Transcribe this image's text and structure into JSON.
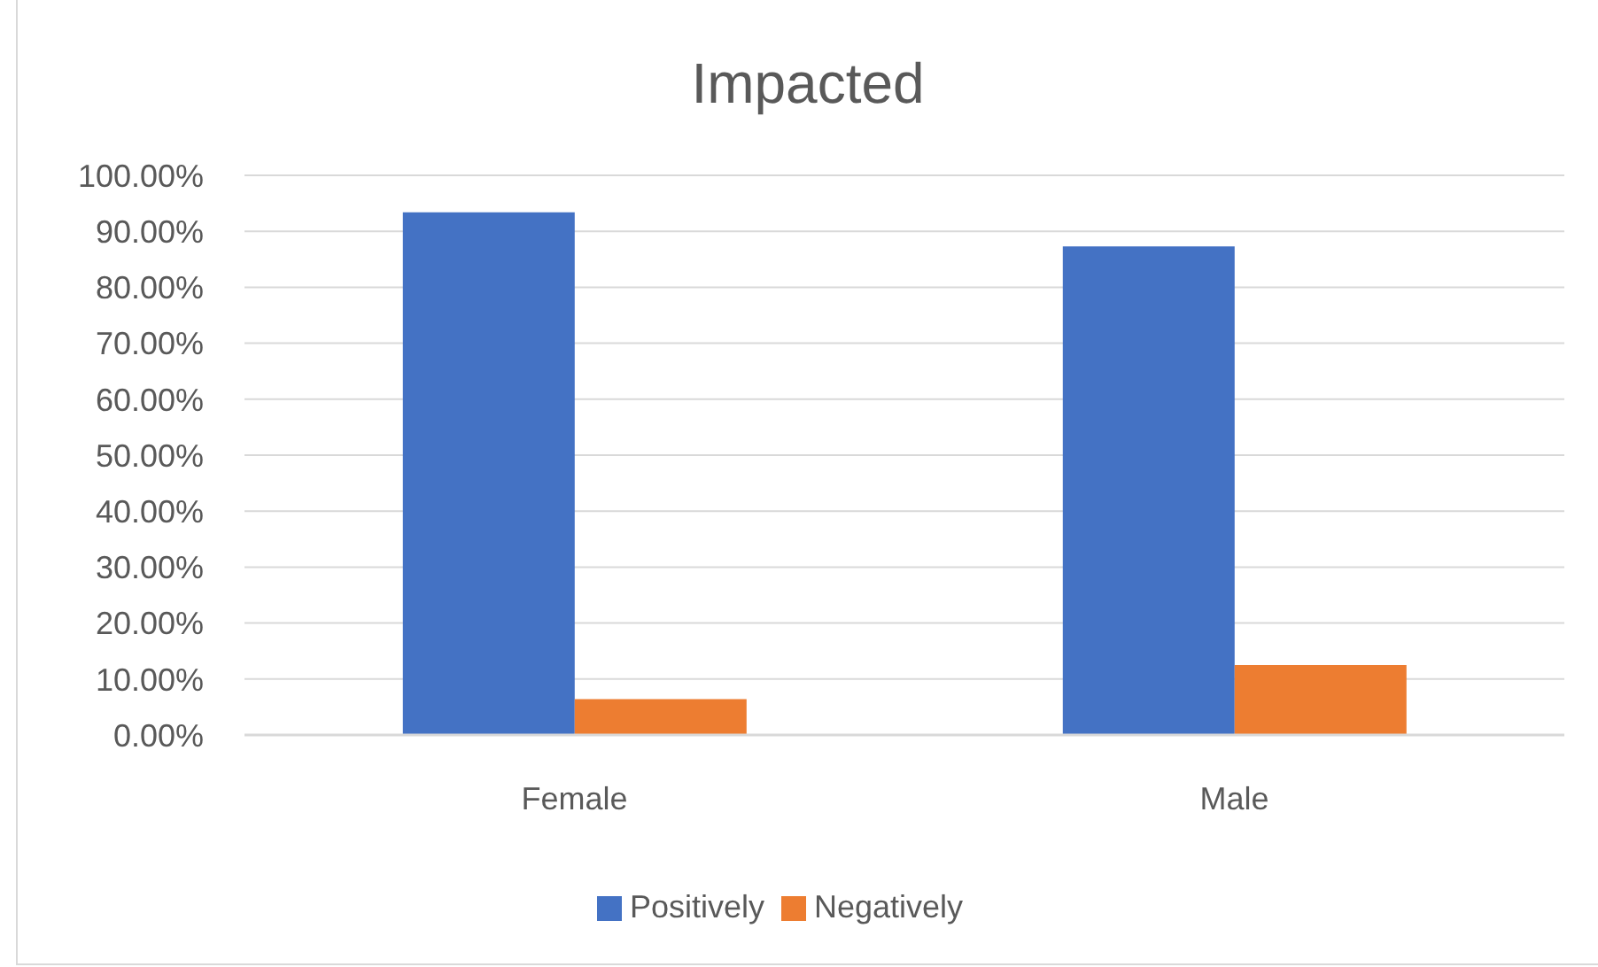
{
  "chart_data": {
    "type": "bar",
    "title": "Impacted",
    "categories": [
      "Female",
      "Male"
    ],
    "series": [
      {
        "name": "Positively",
        "color": "#4472c4",
        "values": [
          93.4,
          87.3
        ]
      },
      {
        "name": "Negatively",
        "color": "#ed7d31",
        "values": [
          6.4,
          12.5
        ]
      }
    ],
    "ylim": [
      0,
      100
    ],
    "yticks": [
      {
        "value": 0,
        "label": "0.00%"
      },
      {
        "value": 10,
        "label": "10.00%"
      },
      {
        "value": 20,
        "label": "20.00%"
      },
      {
        "value": 30,
        "label": "30.00%"
      },
      {
        "value": 40,
        "label": "40.00%"
      },
      {
        "value": 50,
        "label": "50.00%"
      },
      {
        "value": 60,
        "label": "60.00%"
      },
      {
        "value": 70,
        "label": "70.00%"
      },
      {
        "value": 80,
        "label": "80.00%"
      },
      {
        "value": 90,
        "label": "90.00%"
      },
      {
        "value": 100,
        "label": "100.00%"
      }
    ],
    "grid": "y",
    "legend": "bottom"
  }
}
